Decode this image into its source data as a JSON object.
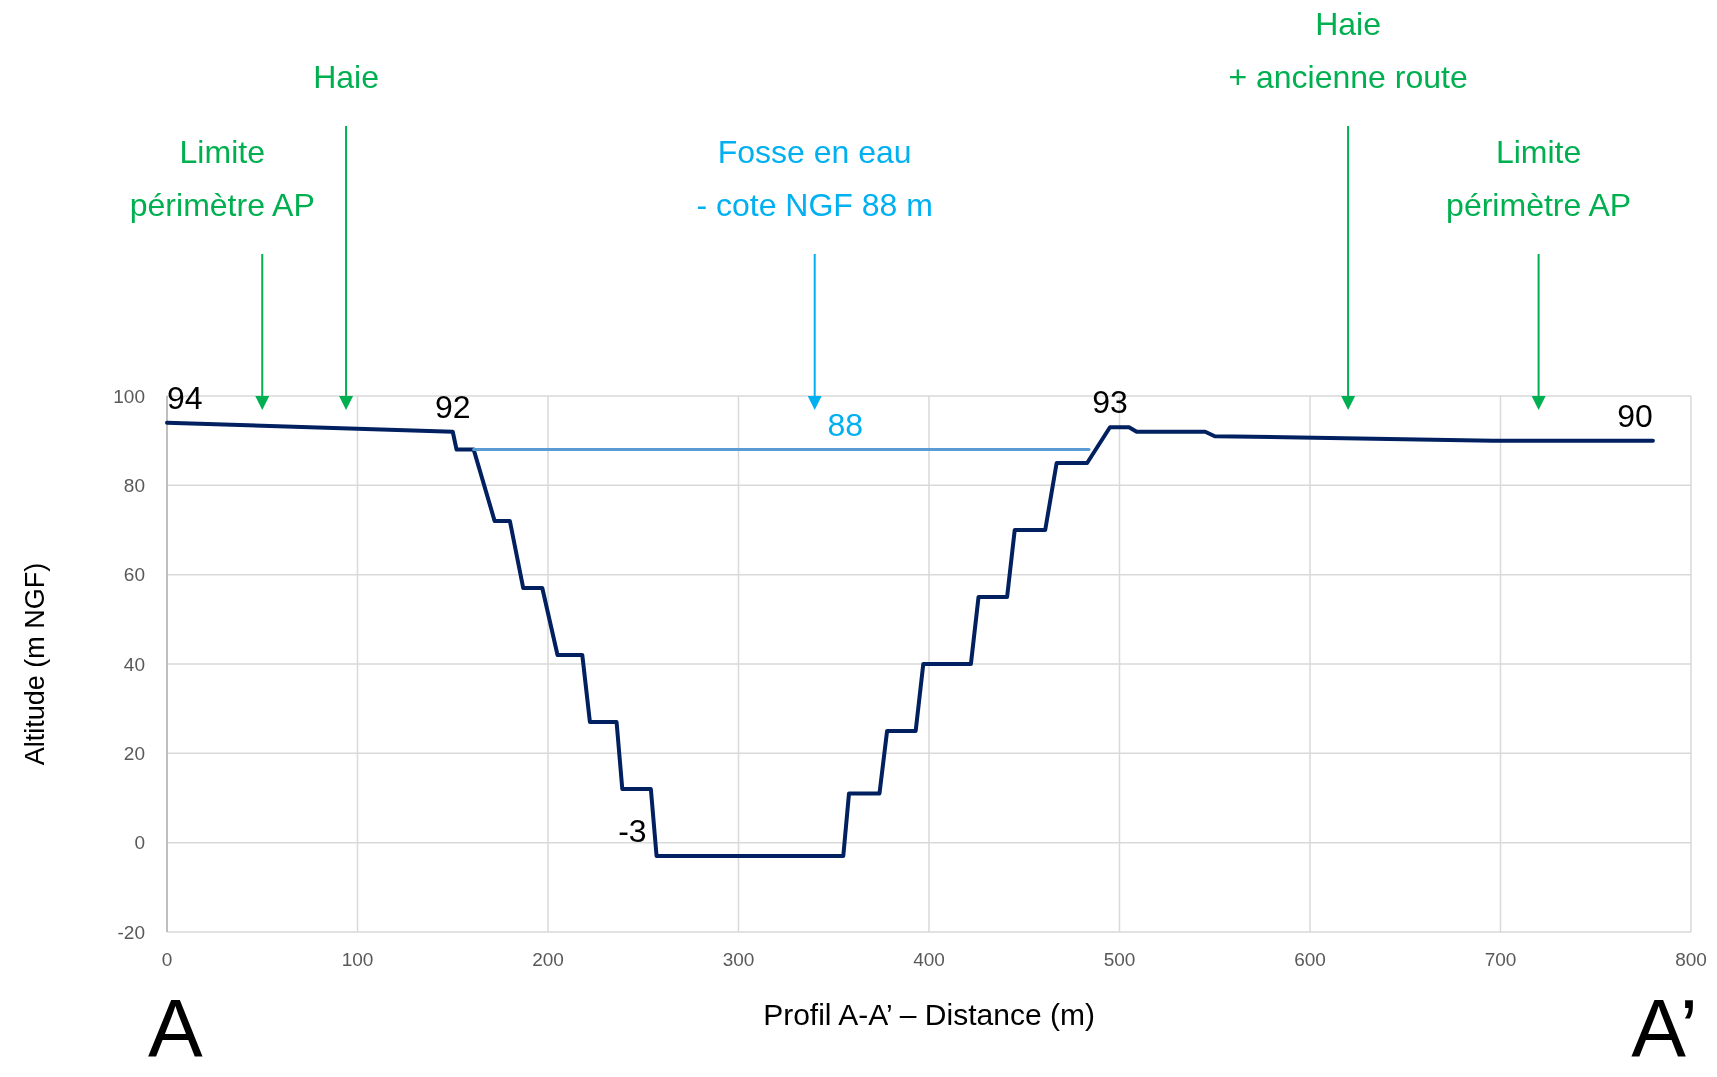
{
  "chart_data": {
    "type": "line",
    "xlabel": "Profil A-A’ – Distance (m)",
    "ylabel": "Altitude (m NGF)",
    "xlim": [
      0,
      800
    ],
    "xticks": [
      0,
      100,
      200,
      300,
      400,
      500,
      600,
      700,
      800
    ],
    "ylim": [
      -20,
      100
    ],
    "yticks": [
      -20,
      0,
      20,
      40,
      60,
      80,
      100
    ],
    "grid": true,
    "legend": false,
    "marker": "none",
    "line_style": "solid",
    "series": [
      {
        "color": "#002060",
        "x": [
          0,
          150,
          152,
          161,
          172,
          180,
          187,
          197,
          205,
          218,
          222,
          236,
          239,
          254,
          257,
          355,
          358,
          374,
          378,
          393,
          397,
          422,
          426,
          441,
          445,
          461,
          467,
          483,
          495,
          505,
          509,
          545,
          550,
          696,
          780
        ],
        "values": [
          94,
          92,
          88,
          88,
          72,
          72,
          57,
          57,
          42,
          42,
          27,
          27,
          12,
          12,
          -3,
          -3,
          11,
          11,
          25,
          25,
          40,
          40,
          55,
          55,
          70,
          70,
          85,
          85,
          93,
          93,
          92,
          92,
          91,
          90,
          90
        ]
      },
      {
        "color": "#5b9bd5",
        "x": [
          161,
          484
        ],
        "values": [
          88,
          88
        ]
      }
    ],
    "annotations": [
      "Limite\npérimètre AP",
      "Haie",
      "Fosse en eau\n- cote NGF 88 m",
      "Haie\n+ ancienne route",
      "Limite\npérimètre AP",
      {
        "text": "94",
        "x": 0,
        "y": 94
      },
      {
        "text": "92",
        "x": 150,
        "y": 92
      },
      {
        "text": "88",
        "x": 356,
        "y": 88
      },
      {
        "text": "-3",
        "x": 257,
        "y": -3
      },
      {
        "text": "93",
        "x": 495,
        "y": 93
      },
      {
        "text": "90",
        "x": 780,
        "y": 90
      },
      "A",
      "A’"
    ]
  }
}
